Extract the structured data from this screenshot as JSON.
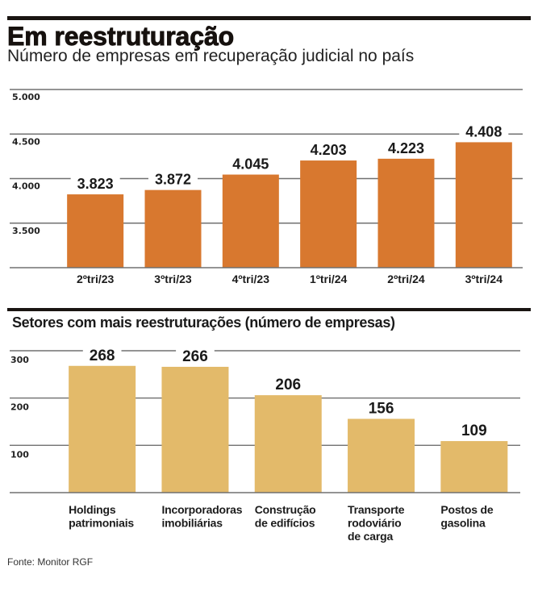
{
  "header": {
    "title": "Em reestruturação",
    "subtitle": "Número de empresas em recuperação judicial no país"
  },
  "section2": {
    "title": "Setores com mais reestruturações (número de empresas)"
  },
  "footer": {
    "source": "Fonte: Monitor RGF"
  },
  "colors": {
    "rule": "#1A1512",
    "grid": "#707070",
    "text": "#1C1C1C",
    "bar_quarterly": "#D8782F",
    "bar_sectors": "#E3BA6A"
  },
  "chart_data": [
    {
      "type": "bar",
      "title": "Número de empresas em recuperação judicial no país",
      "xlabel": "",
      "ylabel": "",
      "categories": [
        "2ºtri/23",
        "3ºtri/23",
        "4ºtri/23",
        "1ºtri/24",
        "2ºtri/24",
        "3ºtri/24"
      ],
      "values": [
        3823,
        3872,
        4045,
        4203,
        4223,
        4408
      ],
      "value_labels": [
        "3.823",
        "3.872",
        "4.045",
        "4.203",
        "4.223",
        "4.408"
      ],
      "ylim": [
        3000,
        5000
      ],
      "yticks": [
        3500,
        4000,
        4500,
        5000
      ],
      "ytick_labels": [
        "3.500",
        "4.000",
        "4.500",
        "5.000"
      ],
      "grid": true,
      "legend": "none",
      "color": "#D8782F"
    },
    {
      "type": "bar",
      "title": "Setores com mais reestruturações (número de empresas)",
      "xlabel": "",
      "ylabel": "",
      "categories": [
        "Holdings patrimoniais",
        "Incorporadoras imobiliárias",
        "Construção de edifícios",
        "Transporte rodoviário de carga",
        "Postos de gasolina"
      ],
      "values": [
        268,
        266,
        206,
        156,
        109
      ],
      "value_labels": [
        "268",
        "266",
        "206",
        "156",
        "109"
      ],
      "ylim": [
        0,
        300
      ],
      "yticks": [
        100,
        200,
        300
      ],
      "ytick_labels": [
        "100",
        "200",
        "300"
      ],
      "grid": true,
      "legend": "none",
      "color": "#E3BA6A"
    }
  ]
}
